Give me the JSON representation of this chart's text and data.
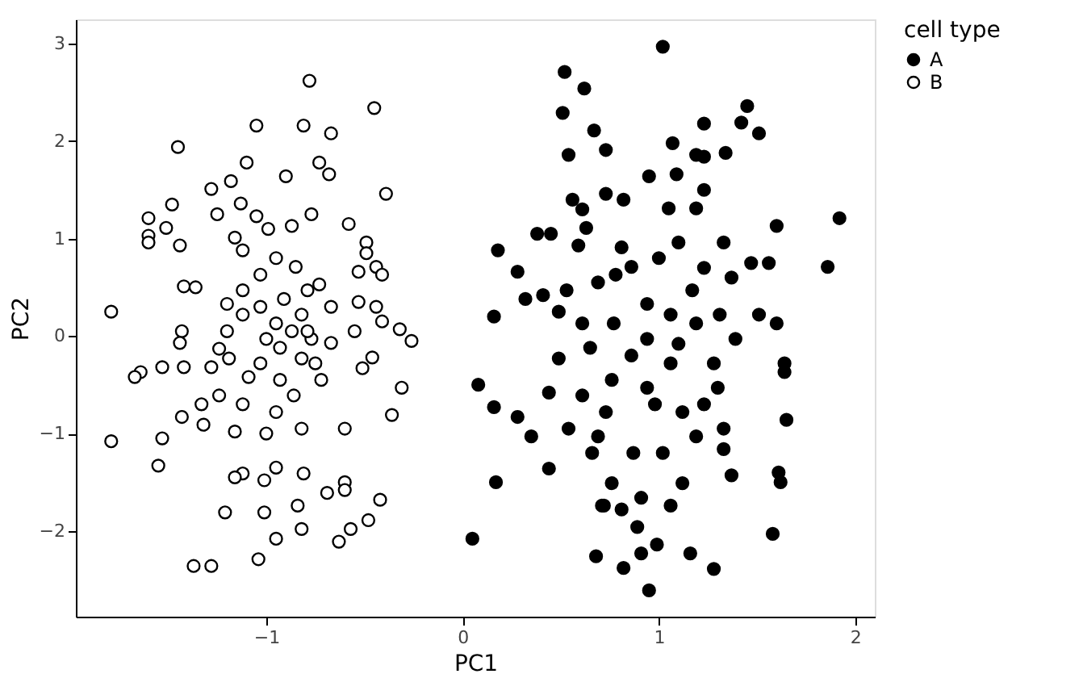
{
  "chart_data": {
    "type": "scatter",
    "xlabel": "PC1",
    "ylabel": "PC2",
    "legend_title": "cell type",
    "legend": "right",
    "grid": false,
    "marker": "circle",
    "xlim": [
      -1.97,
      2.1
    ],
    "ylim": [
      -2.88,
      3.25
    ],
    "xticks": [
      -1,
      0,
      1,
      2
    ],
    "yticks": [
      -2,
      -1,
      0,
      1,
      2,
      3
    ],
    "series": [
      {
        "name": "A",
        "color": "#000000",
        "x": [
          1.02,
          0.52,
          0.62,
          0.51,
          1.45,
          1.51,
          1.42,
          1.23,
          0.67,
          0.54,
          0.73,
          1.07,
          1.19,
          1.23,
          1.34,
          0.95,
          1.09,
          1.23,
          0.56,
          0.73,
          0.82,
          1.05,
          1.19,
          0.61,
          0.63,
          0.38,
          0.45,
          0.18,
          0.28,
          0.59,
          0.81,
          1.1,
          1.33,
          1.6,
          1.86,
          1.92,
          1.56,
          1.47,
          1.37,
          1.23,
          0.86,
          0.69,
          0.53,
          0.41,
          0.32,
          0.49,
          0.16,
          1.6,
          1.51,
          1.64,
          1.64,
          1.65,
          0.08,
          0.16,
          0.28,
          0.35,
          0.17,
          0.05,
          0.72,
          0.81,
          0.89,
          0.91,
          0.68,
          0.99,
          0.95,
          0.82,
          1.16,
          1.28,
          1.58,
          1.61,
          1.62,
          1.37,
          1.12,
          1.06,
          0.91,
          0.71,
          0.76,
          1.02,
          0.66,
          0.44,
          0.54,
          0.69,
          0.87,
          1.19,
          1.33,
          1.33,
          1.3,
          1.23,
          0.61,
          0.44,
          0.76,
          0.94,
          1.06,
          0.86,
          0.65,
          0.49,
          1.39,
          1.19,
          1.06,
          0.94,
          0.77,
          0.61,
          0.94,
          1.1,
          0.78,
          1.0,
          1.17,
          1.31,
          1.28,
          0.73,
          0.98,
          1.12
        ],
        "values": [
          2.97,
          2.71,
          2.54,
          2.29,
          2.36,
          2.08,
          2.19,
          2.18,
          2.11,
          1.86,
          1.91,
          1.98,
          1.86,
          1.84,
          1.88,
          1.64,
          1.66,
          1.5,
          1.4,
          1.46,
          1.4,
          1.31,
          1.31,
          1.3,
          1.11,
          1.05,
          1.05,
          0.88,
          0.66,
          0.93,
          0.91,
          0.96,
          0.96,
          1.13,
          0.71,
          1.21,
          0.75,
          0.75,
          0.6,
          0.7,
          0.71,
          0.55,
          0.47,
          0.42,
          0.38,
          0.25,
          0.2,
          0.13,
          0.22,
          -0.37,
          -0.28,
          -0.86,
          -0.5,
          -0.73,
          -0.83,
          -1.03,
          -1.5,
          -2.08,
          -1.74,
          -1.78,
          -1.96,
          -2.23,
          -2.26,
          -2.14,
          -2.61,
          -2.38,
          -2.23,
          -2.39,
          -2.03,
          -1.4,
          -1.5,
          -1.43,
          -1.51,
          -1.74,
          -1.66,
          -1.74,
          -1.51,
          -1.2,
          -1.2,
          -1.36,
          -0.95,
          -1.03,
          -1.2,
          -1.03,
          -0.95,
          -1.16,
          -0.53,
          -0.7,
          -0.61,
          -0.58,
          -0.45,
          -0.53,
          -0.28,
          -0.2,
          -0.12,
          -0.23,
          -0.03,
          0.13,
          0.22,
          0.33,
          0.13,
          0.13,
          -0.03,
          -0.08,
          0.63,
          0.8,
          0.47,
          0.22,
          -0.28,
          -0.78,
          -0.7,
          -0.78
        ]
      },
      {
        "name": "B",
        "color": "#ffffff",
        "x": [
          -0.78,
          -0.45,
          -1.05,
          -0.81,
          -0.67,
          -1.45,
          -1.1,
          -0.73,
          -0.9,
          -0.68,
          -1.28,
          -1.18,
          -1.13,
          -0.39,
          -1.48,
          -1.6,
          -1.51,
          -1.25,
          -1.05,
          -0.77,
          -0.58,
          -1.6,
          -1.6,
          -1.44,
          -1.16,
          -0.99,
          -0.87,
          -0.49,
          -0.49,
          -0.44,
          -0.41,
          -0.53,
          -1.42,
          -1.36,
          -0.73,
          -1.79,
          -0.53,
          -0.44,
          -0.41,
          -0.32,
          -0.26,
          -0.55,
          -1.43,
          -1.2,
          -1.12,
          -1.0,
          -0.87,
          -0.77,
          -0.67,
          -1.44,
          -1.24,
          -1.19,
          -1.64,
          -1.67,
          -1.53,
          -1.42,
          -1.28,
          -1.09,
          -0.93,
          -0.72,
          -0.51,
          -0.46,
          -0.31,
          -0.36,
          -1.24,
          -1.12,
          -1.33,
          -1.43,
          -1.32,
          -1.16,
          -1.0,
          -0.82,
          -0.6,
          -1.79,
          -1.53,
          -1.55,
          -1.12,
          -1.16,
          -0.95,
          -0.81,
          -1.01,
          -0.6,
          -0.6,
          -0.69,
          -0.42,
          -1.21,
          -1.01,
          -0.84,
          -0.48,
          -0.57,
          -0.82,
          -0.95,
          -0.63,
          -1.04,
          -1.37,
          -1.28,
          -1.12,
          -0.95,
          -0.85,
          -1.03,
          -0.79,
          -0.91,
          -1.03,
          -0.82,
          -0.95,
          -0.79,
          -0.93,
          -0.82,
          -1.03,
          -0.75,
          -0.86,
          -0.95,
          -1.2,
          -0.67,
          -1.12
        ],
        "values": [
          2.62,
          2.34,
          2.16,
          2.16,
          2.08,
          1.94,
          1.78,
          1.78,
          1.64,
          1.66,
          1.51,
          1.59,
          1.36,
          1.46,
          1.35,
          1.21,
          1.11,
          1.25,
          1.23,
          1.25,
          1.15,
          1.03,
          0.96,
          0.93,
          1.01,
          1.1,
          1.13,
          0.96,
          0.85,
          0.71,
          0.63,
          0.66,
          0.51,
          0.5,
          0.53,
          0.25,
          0.35,
          0.3,
          0.15,
          0.07,
          -0.05,
          0.05,
          0.05,
          0.33,
          0.22,
          -0.03,
          0.05,
          -0.03,
          -0.07,
          -0.07,
          -0.13,
          -0.23,
          -0.37,
          -0.42,
          -0.32,
          -0.32,
          -0.32,
          -0.42,
          -0.45,
          -0.45,
          -0.33,
          -0.22,
          -0.53,
          -0.81,
          -0.61,
          -0.7,
          -0.7,
          -0.83,
          -0.91,
          -0.98,
          -1.0,
          -0.95,
          -0.95,
          -1.08,
          -1.05,
          -1.33,
          -1.41,
          -1.45,
          -1.35,
          -1.41,
          -1.48,
          -1.5,
          -1.58,
          -1.61,
          -1.68,
          -1.81,
          -1.81,
          -1.74,
          -1.89,
          -1.98,
          -1.98,
          -2.08,
          -2.11,
          -2.29,
          -2.36,
          -2.36,
          0.88,
          0.8,
          0.71,
          0.63,
          0.47,
          0.38,
          0.3,
          0.22,
          0.13,
          0.05,
          -0.12,
          -0.23,
          -0.28,
          -0.28,
          -0.61,
          -0.78,
          0.05,
          0.3,
          0.47
        ]
      }
    ]
  }
}
